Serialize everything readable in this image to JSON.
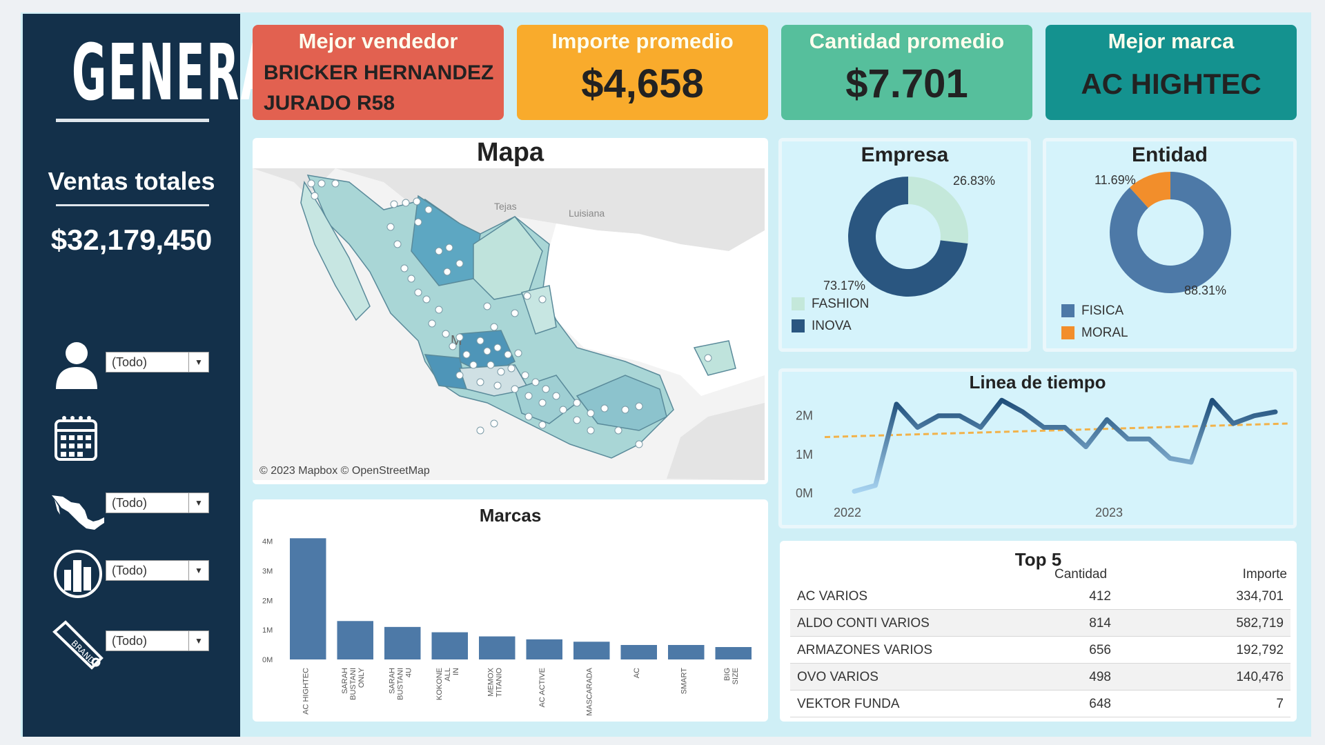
{
  "sidebar": {
    "title": "GENERAL",
    "total_label": "Ventas totales",
    "total_value": "$32,179,450",
    "filters": [
      {
        "icon": "user-icon",
        "value": "(Todo)"
      },
      {
        "icon": "calendar-icon",
        "value": ""
      },
      {
        "icon": "mexico-map-icon",
        "value": "(Todo)"
      },
      {
        "icon": "buildings-icon",
        "value": "(Todo)"
      },
      {
        "icon": "brand-tag-icon",
        "value": "(Todo)"
      }
    ]
  },
  "kpis": [
    {
      "label": "Mejor vendedor",
      "value_line1": "BRICKER HERNANDEZ",
      "value_line2": "JURADO R58",
      "color": "#e26150"
    },
    {
      "label": "Importe promedio",
      "value": "$4,658",
      "color": "#f9ab2c"
    },
    {
      "label": "Cantidad promedio",
      "value": "$7.701",
      "color": "#56bf9c"
    },
    {
      "label": "Mejor marca",
      "value": "AC HIGHTEC",
      "color": "#14928f"
    }
  ],
  "map": {
    "title": "Mapa",
    "labels": [
      "Tejas",
      "Luisiana",
      "M"
    ],
    "attribution": "© 2023 Mapbox © OpenStreetMap"
  },
  "empresa": {
    "title": "Empresa",
    "slices": [
      {
        "name": "FASHION",
        "value": 26.83,
        "label": "26.83%",
        "color": "#c4e8da"
      },
      {
        "name": "INOVA",
        "value": 73.17,
        "label": "73.17%",
        "color": "#2a5680"
      }
    ]
  },
  "entidad": {
    "title": "Entidad",
    "slices": [
      {
        "name": "FISICA",
        "value": 88.31,
        "label": "88.31%",
        "color": "#4d79a7"
      },
      {
        "name": "MORAL",
        "value": 11.69,
        "label": "11.69%",
        "color": "#f28e2b"
      }
    ]
  },
  "timeline": {
    "title": "Linea de tiempo",
    "y_ticks": [
      "2M",
      "1M",
      "0M"
    ],
    "x_ticks": [
      "2022",
      "2023"
    ]
  },
  "marcas": {
    "title": "Marcas",
    "y_ticks": [
      "4M",
      "3M",
      "2M",
      "1M",
      "0M"
    ]
  },
  "top5": {
    "title": "Top 5",
    "col_qty": "Cantidad",
    "col_amount": "Importe",
    "rows": [
      {
        "name": "AC VARIOS",
        "qty": "412",
        "amount": "334,701"
      },
      {
        "name": "ALDO CONTI VARIOS",
        "qty": "814",
        "amount": "582,719"
      },
      {
        "name": "ARMAZONES VARIOS",
        "qty": "656",
        "amount": "192,792"
      },
      {
        "name": "OVO VARIOS",
        "qty": "498",
        "amount": "140,476"
      },
      {
        "name": "VEKTOR FUNDA",
        "qty": "648",
        "amount": "7"
      }
    ]
  },
  "chart_data": [
    {
      "type": "bar",
      "title": "Marcas",
      "categories": [
        "AC HIGHTEC",
        "SARAH BUSTANI ONLY",
        "SARAH BUSTANI 4U",
        "KOKONE ALL IN",
        "MEMOX TITANIO",
        "AC ACTIVE",
        "MASCARADA",
        "AC",
        "SMART",
        "BIG SIZE"
      ],
      "values": [
        4100000,
        1300000,
        1100000,
        920000,
        780000,
        680000,
        600000,
        490000,
        490000,
        420000
      ],
      "ylim": [
        0,
        4200000
      ]
    },
    {
      "type": "line",
      "title": "Linea de tiempo",
      "x": [
        "2022-01",
        "2022-02",
        "2022-03",
        "2022-04",
        "2022-05",
        "2022-06",
        "2022-07",
        "2022-08",
        "2022-09",
        "2022-10",
        "2022-11",
        "2022-12",
        "2023-01",
        "2023-02",
        "2023-03",
        "2023-04",
        "2023-05",
        "2023-06",
        "2023-07",
        "2023-08",
        "2023-09"
      ],
      "series": [
        {
          "values": [
            0.05,
            0.2,
            2.3,
            1.7,
            2.0,
            2.0,
            1.7,
            2.4,
            2.1,
            1.7,
            1.7,
            1.2,
            1.9,
            1.4,
            1.4,
            0.9,
            0.8,
            2.4,
            1.8,
            2.0,
            2.1
          ]
        }
      ],
      "trend": {
        "start": 1.45,
        "end": 1.8
      },
      "ylim": [
        0,
        2.6
      ]
    },
    {
      "type": "pie",
      "title": "Empresa",
      "categories": [
        "FASHION",
        "INOVA"
      ],
      "values": [
        26.83,
        73.17
      ]
    },
    {
      "type": "pie",
      "title": "Entidad",
      "categories": [
        "FISICA",
        "MORAL"
      ],
      "values": [
        88.31,
        11.69
      ]
    }
  ]
}
